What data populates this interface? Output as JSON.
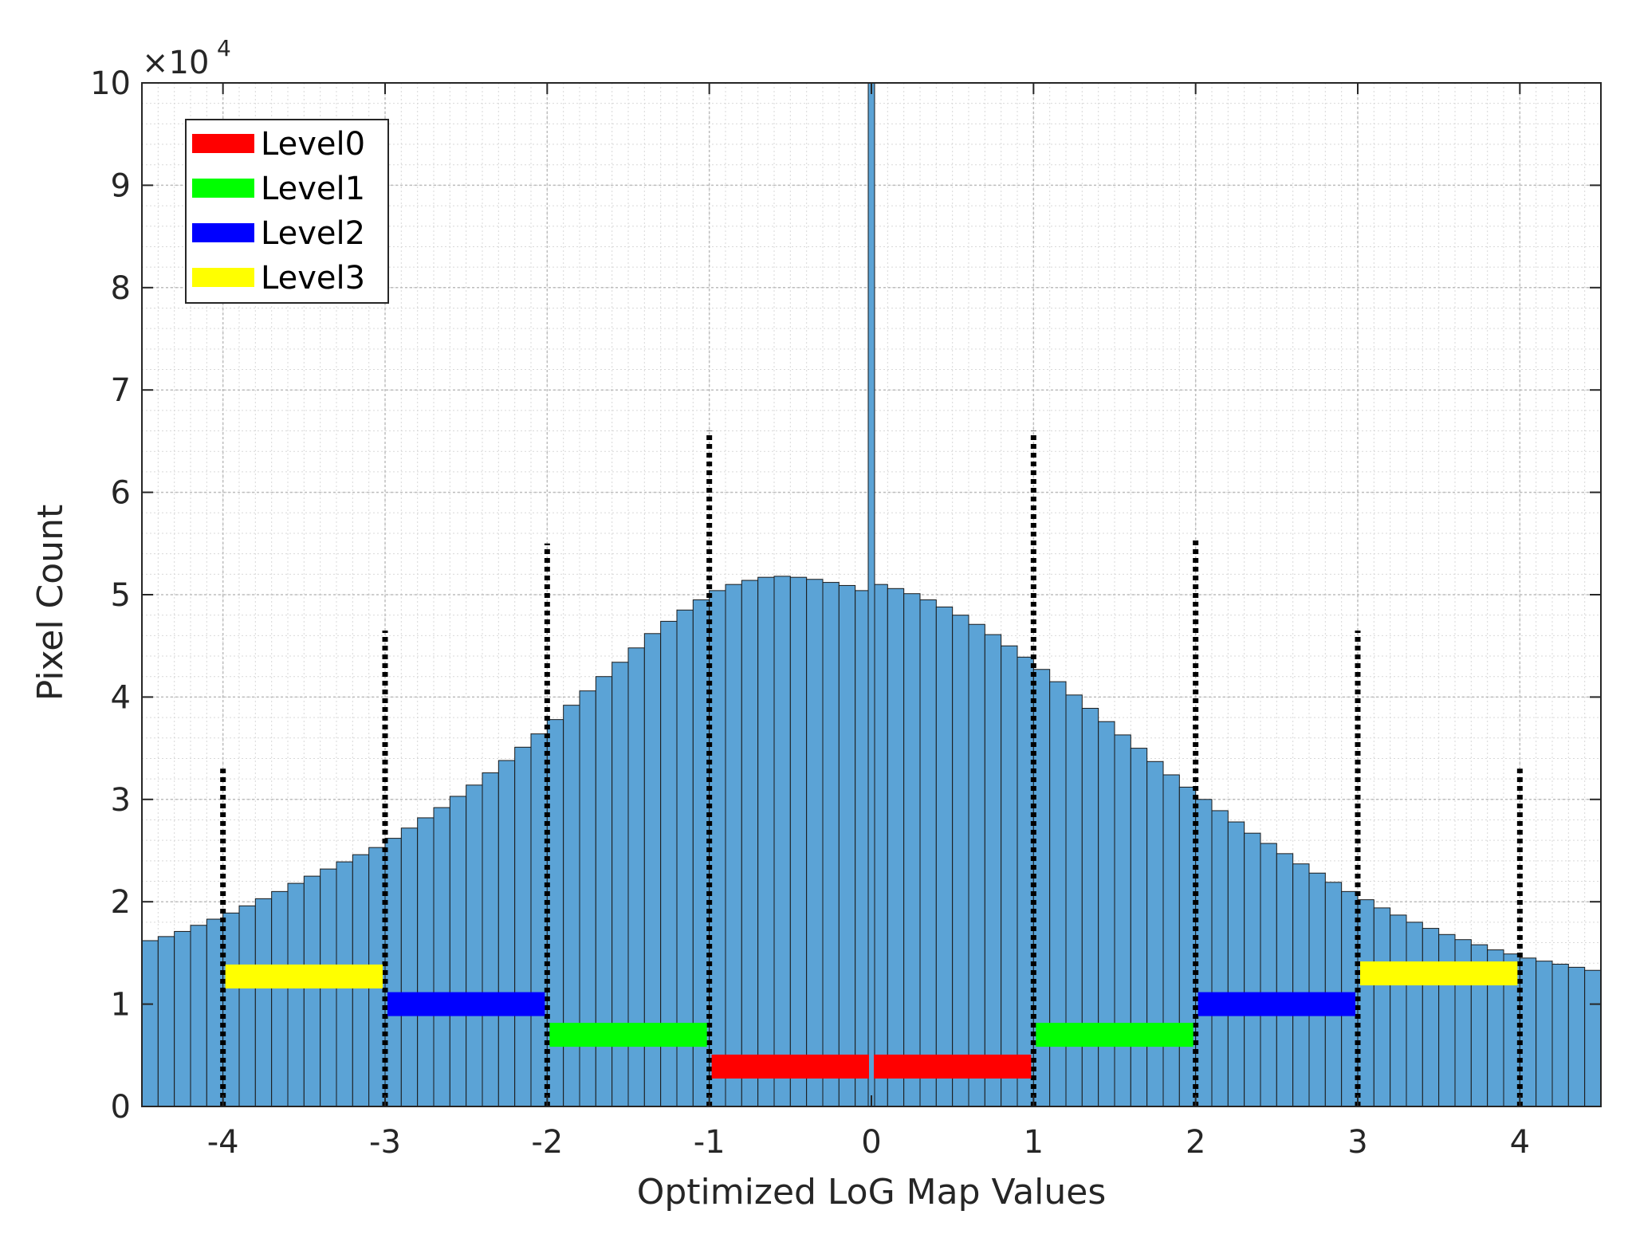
{
  "chart_data": {
    "type": "bar",
    "title": "",
    "xlabel": "Optimized LoG Map Values",
    "ylabel": "Pixel Count",
    "xlim": [
      -4.5,
      4.5
    ],
    "ylim": [
      0,
      100000
    ],
    "y_exponent_label": {
      "base": "×10",
      "power": "4"
    },
    "grid": true,
    "minor_grid": true,
    "bar_color": "#5ba3d6",
    "bar_edge_color": "#1a1a1a",
    "bin_width": 0.1,
    "x_ticks": [
      -4,
      -3,
      -2,
      -1,
      0,
      1,
      2,
      3,
      4
    ],
    "x_tick_labels": [
      "-4",
      "-3",
      "-2",
      "-1",
      "0",
      "1",
      "2",
      "3",
      "4"
    ],
    "y_ticks": [
      0,
      10000,
      20000,
      30000,
      40000,
      50000,
      60000,
      70000,
      80000,
      90000,
      100000
    ],
    "y_tick_labels": [
      "0",
      "1",
      "2",
      "3",
      "4",
      "5",
      "6",
      "7",
      "8",
      "9",
      "10"
    ],
    "histogram": {
      "bin_centers": [
        -4.45,
        -4.35,
        -4.25,
        -4.15,
        -4.05,
        -3.95,
        -3.85,
        -3.75,
        -3.65,
        -3.55,
        -3.45,
        -3.35,
        -3.25,
        -3.15,
        -3.05,
        -2.95,
        -2.85,
        -2.75,
        -2.65,
        -2.55,
        -2.45,
        -2.35,
        -2.25,
        -2.15,
        -2.05,
        -1.95,
        -1.85,
        -1.75,
        -1.65,
        -1.55,
        -1.45,
        -1.35,
        -1.25,
        -1.15,
        -1.05,
        -0.95,
        -0.85,
        -0.75,
        -0.65,
        -0.55,
        -0.45,
        -0.35,
        -0.25,
        -0.15,
        -0.05,
        0.05,
        0.15,
        0.25,
        0.35,
        0.45,
        0.55,
        0.65,
        0.75,
        0.85,
        0.95,
        1.05,
        1.15,
        1.25,
        1.35,
        1.45,
        1.55,
        1.65,
        1.75,
        1.85,
        1.95,
        2.05,
        2.15,
        2.25,
        2.35,
        2.45,
        2.55,
        2.65,
        2.75,
        2.85,
        2.95,
        3.05,
        3.15,
        3.25,
        3.35,
        3.45,
        3.55,
        3.65,
        3.75,
        3.85,
        3.95,
        4.05,
        4.15,
        4.25,
        4.35,
        4.45
      ],
      "counts": [
        16200,
        16600,
        17100,
        17700,
        18300,
        18900,
        19600,
        20300,
        21000,
        21800,
        22500,
        23200,
        23900,
        24600,
        25300,
        26200,
        27200,
        28200,
        29200,
        30300,
        31400,
        32600,
        33800,
        35100,
        36400,
        37800,
        39200,
        40600,
        42000,
        43400,
        44800,
        46200,
        47400,
        48500,
        49500,
        50400,
        51000,
        51400,
        51700,
        51800,
        51700,
        51500,
        51200,
        50900,
        50400,
        51000,
        50600,
        50100,
        49500,
        48800,
        48000,
        47100,
        46100,
        45000,
        43900,
        42700,
        41500,
        40200,
        38900,
        37600,
        36300,
        35000,
        33700,
        32400,
        31200,
        30000,
        28900,
        27800,
        26700,
        25700,
        24700,
        23700,
        22800,
        21900,
        21000,
        20200,
        19400,
        18700,
        18000,
        17400,
        16800,
        16300,
        15800,
        15300,
        14900,
        14500,
        14200,
        13900,
        13600,
        13300
      ]
    },
    "spike": {
      "x": 0.0,
      "value": 100000
    },
    "thresholds": [
      {
        "x": -4,
        "height": 33000
      },
      {
        "x": -3,
        "height": 46500
      },
      {
        "x": -2,
        "height": 55000
      },
      {
        "x": -1,
        "height": 66000
      },
      {
        "x": 1,
        "height": 66000
      },
      {
        "x": 2,
        "height": 55500
      },
      {
        "x": 3,
        "height": 46500
      },
      {
        "x": 4,
        "height": 33000
      }
    ],
    "level_segments": [
      {
        "level": "Level3",
        "x_start": -4,
        "x_end": -3,
        "y": 12700,
        "color": "#ffff00"
      },
      {
        "level": "Level2",
        "x_start": -3,
        "x_end": -2,
        "y": 10000,
        "color": "#0000ff"
      },
      {
        "level": "Level1",
        "x_start": -2,
        "x_end": -1,
        "y": 7000,
        "color": "#00ff00"
      },
      {
        "level": "Level0",
        "x_start": -1,
        "x_end": 0,
        "y": 3900,
        "color": "#ff0000"
      },
      {
        "level": "Level0",
        "x_start": 0,
        "x_end": 1,
        "y": 3900,
        "color": "#ff0000"
      },
      {
        "level": "Level1",
        "x_start": 1,
        "x_end": 2,
        "y": 7000,
        "color": "#00ff00"
      },
      {
        "level": "Level2",
        "x_start": 2,
        "x_end": 3,
        "y": 10000,
        "color": "#0000ff"
      },
      {
        "level": "Level3",
        "x_start": 3,
        "x_end": 4,
        "y": 13000,
        "color": "#ffff00"
      }
    ],
    "legend": {
      "placement": "top-left",
      "entries": [
        {
          "label": "Level0",
          "color": "#ff0000"
        },
        {
          "label": "Level1",
          "color": "#00ff00"
        },
        {
          "label": "Level2",
          "color": "#0000ff"
        },
        {
          "label": "Level3",
          "color": "#ffff00"
        }
      ]
    }
  }
}
